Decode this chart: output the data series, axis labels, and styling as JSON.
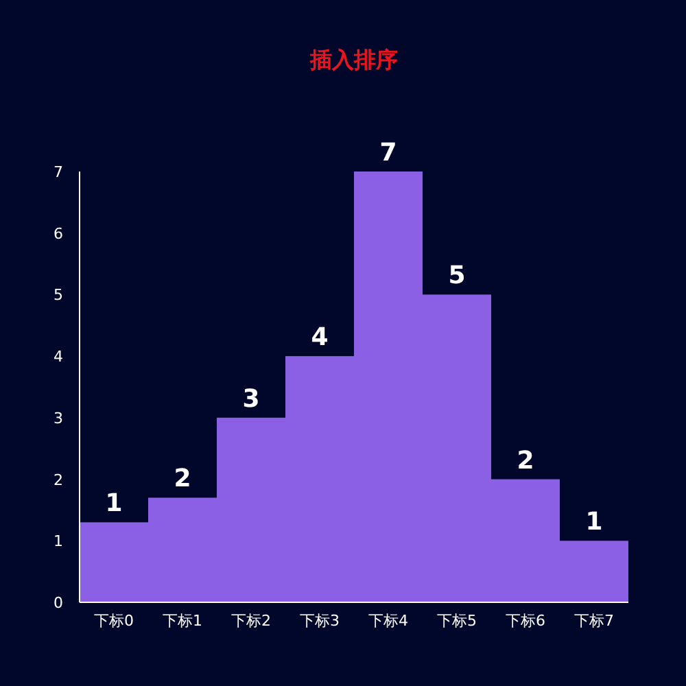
{
  "chart_data": {
    "type": "bar",
    "title": "插入排序",
    "categories": [
      "下标0",
      "下标1",
      "下标2",
      "下标3",
      "下标4",
      "下标5",
      "下标6",
      "下标7"
    ],
    "values": [
      1.3,
      1.7,
      3,
      4,
      7,
      5,
      2,
      1
    ],
    "value_labels": [
      "1",
      "2",
      "3",
      "4",
      "7",
      "5",
      "2",
      "1"
    ],
    "color": "#8c60e4",
    "ylim": [
      0,
      7
    ],
    "yticks": [
      0,
      1,
      2,
      3,
      4,
      5,
      6,
      7
    ],
    "grid": false
  }
}
